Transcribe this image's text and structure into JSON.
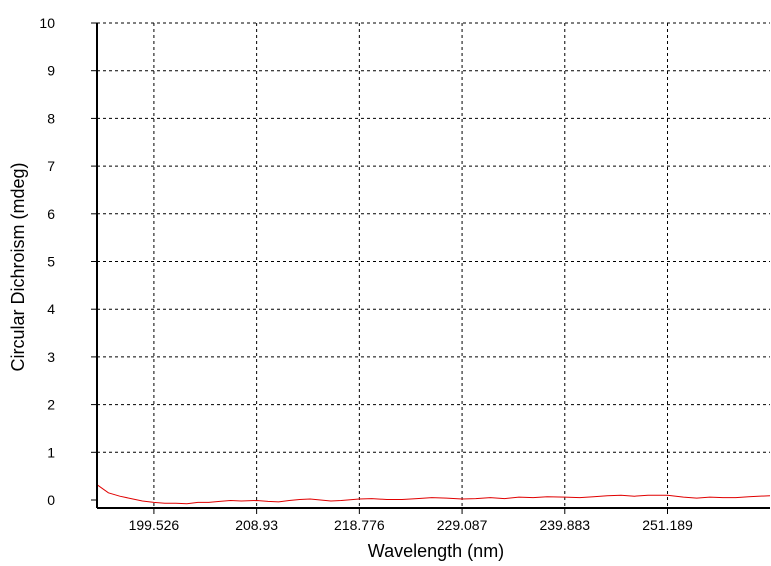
{
  "chart_data": {
    "type": "line",
    "title": "",
    "xlabel": "Wavelength (nm)",
    "ylabel": "Circular Dichroism (mdeg)",
    "xscale": "log",
    "xlim": [
      194.5,
      263.0
    ],
    "ylim": [
      0,
      10
    ],
    "grid": true,
    "grid_style": "dashed",
    "x_ticks": [
      199.526,
      208.93,
      218.776,
      229.087,
      239.883,
      251.189
    ],
    "x_tick_labels": [
      "199.526",
      "208.93",
      "218.776",
      "229.087",
      "239.883",
      "251.189"
    ],
    "y_ticks": [
      0,
      1,
      2,
      3,
      4,
      5,
      6,
      7,
      8,
      9,
      10
    ],
    "y_tick_labels": [
      "0",
      "1",
      "2",
      "3",
      "4",
      "5",
      "6",
      "7",
      "8",
      "9",
      "10"
    ],
    "series_color": "#e00000",
    "series": [
      {
        "x": [
          194.5,
          195.5,
          196.5,
          197.5,
          198.5,
          199.526,
          200.5,
          201.5,
          202.5,
          203.5,
          204.5,
          205.5,
          206.5,
          207.5,
          208.93,
          210.0,
          211.0,
          212.0,
          213.0,
          214.0,
          215.0,
          216.0,
          217.0,
          218.776,
          220.0,
          221.5,
          223.0,
          224.5,
          226.0,
          227.5,
          229.087,
          230.5,
          232.0,
          233.5,
          235.0,
          236.5,
          238.0,
          239.883,
          241.5,
          243.0,
          244.5,
          246.0,
          247.5,
          249.0,
          251.189,
          253.0,
          254.5,
          256.0,
          257.5,
          259.0,
          260.5,
          263.0
        ],
        "y": [
          0.32,
          0.15,
          0.08,
          0.03,
          -0.02,
          -0.05,
          -0.07,
          -0.07,
          -0.08,
          -0.05,
          -0.05,
          -0.03,
          -0.01,
          -0.02,
          -0.01,
          -0.03,
          -0.04,
          -0.01,
          0.01,
          0.02,
          0.0,
          -0.02,
          -0.01,
          0.02,
          0.03,
          0.01,
          0.01,
          0.03,
          0.05,
          0.04,
          0.02,
          0.03,
          0.05,
          0.03,
          0.06,
          0.05,
          0.07,
          0.06,
          0.05,
          0.07,
          0.09,
          0.1,
          0.08,
          0.1,
          0.1,
          0.06,
          0.04,
          0.06,
          0.05,
          0.05,
          0.07,
          0.09
        ]
      }
    ]
  }
}
